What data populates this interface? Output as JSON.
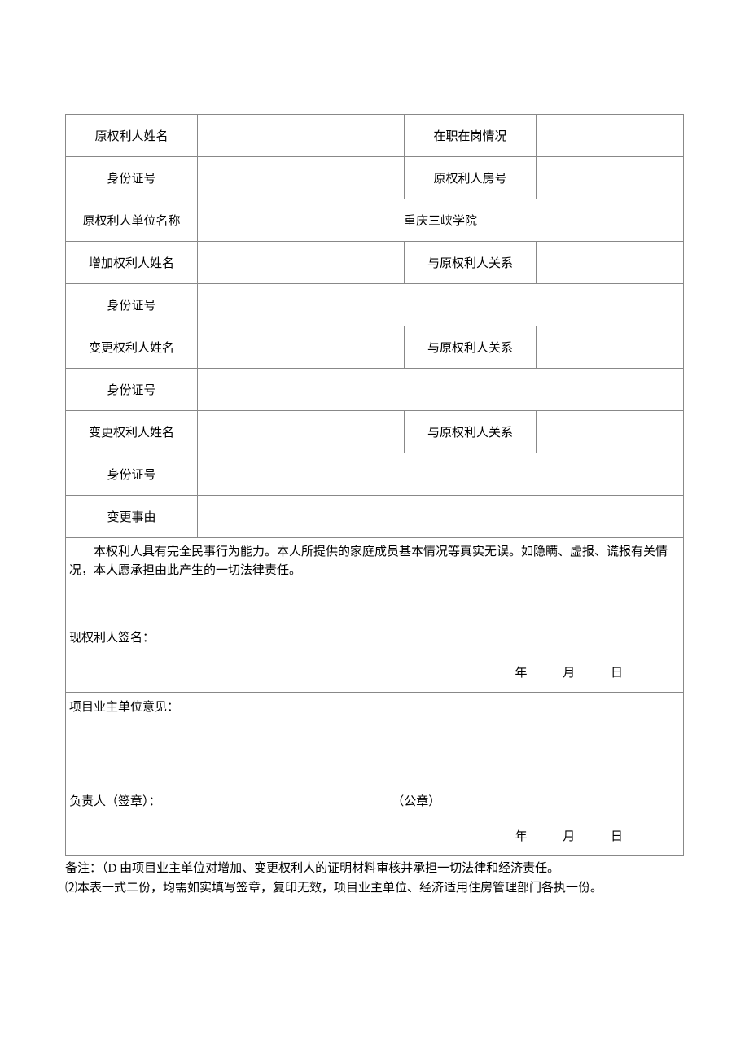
{
  "table": {
    "rows": [
      {
        "label1": "原权利人姓名",
        "value1": "",
        "label2": "在职在岗情况",
        "value2": ""
      },
      {
        "label1": "身份证号",
        "value1": "",
        "label2": "原权利人房号",
        "value2": ""
      },
      {
        "label1": "原权利人单位名称",
        "valueSpan": "重庆三峡学院"
      },
      {
        "label1": "增加权利人姓名",
        "value1": "",
        "label2": "与原权利人关系",
        "value2": ""
      },
      {
        "label1": "身份证号",
        "valueSpan": ""
      },
      {
        "label1": "变更权利人姓名",
        "value1": "",
        "label2": "与原权利人关系",
        "value2": ""
      },
      {
        "label1": "身份证号",
        "valueSpan": ""
      },
      {
        "label1": "变更权利人姓名",
        "value1": "",
        "label2": "与原权利人关系",
        "value2": ""
      },
      {
        "label1": "身份证号",
        "valueSpan": ""
      },
      {
        "label1": "变更事由",
        "valueSpan": ""
      }
    ]
  },
  "declaration": {
    "text": "本权利人具有完全民事行为能力。本人所提供的家庭成员基本情况等真实无误。如隐瞒、虚报、谎报有关情况，本人愿承担由此产生的一切法律责任。",
    "signatureLabel": "现权利人签名：",
    "dateYear": "年",
    "dateMonth": "月",
    "dateDay": "日"
  },
  "opinion": {
    "title": "项目业主单位意见：",
    "responsibleLabel": "负责人（签章）：",
    "sealLabel": "（公章）",
    "dateYear": "年",
    "dateMonth": "月",
    "dateDay": "日"
  },
  "notes": {
    "prefix": "备注：",
    "line1": "（D 由项目业主单位对增加、变更权利人的证明材料审核并承担一切法律和经济责任。",
    "line2": "⑵本表一式二份，均需如实填写签章，复印无效，项目业主单位、经济适用住房管理部门各执一份。"
  },
  "style": {
    "borderColor": "#888888",
    "backgroundColor": "#ffffff",
    "textColor": "#000000",
    "fontSize": 15
  }
}
